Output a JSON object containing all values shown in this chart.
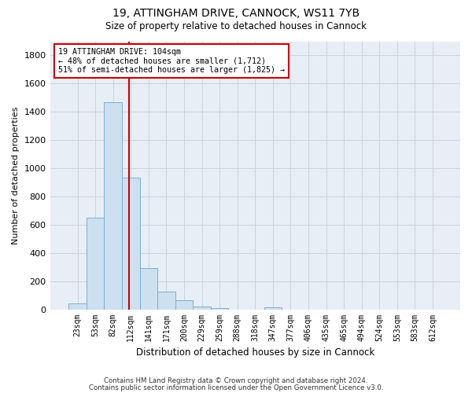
{
  "title1": "19, ATTINGHAM DRIVE, CANNOCK, WS11 7YB",
  "title2": "Size of property relative to detached houses in Cannock",
  "xlabel": "Distribution of detached houses by size in Cannock",
  "ylabel": "Number of detached properties",
  "bar_color": "#cce0f0",
  "bar_edge_color": "#7bafd4",
  "categories": [
    "23sqm",
    "53sqm",
    "82sqm",
    "112sqm",
    "141sqm",
    "171sqm",
    "200sqm",
    "229sqm",
    "259sqm",
    "288sqm",
    "318sqm",
    "347sqm",
    "377sqm",
    "406sqm",
    "435sqm",
    "465sqm",
    "494sqm",
    "524sqm",
    "553sqm",
    "583sqm",
    "612sqm"
  ],
  "values": [
    40,
    650,
    1470,
    935,
    290,
    125,
    62,
    22,
    8,
    0,
    0,
    14,
    0,
    0,
    0,
    0,
    0,
    0,
    0,
    0,
    0
  ],
  "ylim": [
    0,
    1900
  ],
  "yticks": [
    0,
    200,
    400,
    600,
    800,
    1000,
    1200,
    1400,
    1600,
    1800
  ],
  "vline_x": 2.88,
  "annotation_text": "19 ATTINGHAM DRIVE: 104sqm\n← 48% of detached houses are smaller (1,712)\n51% of semi-detached houses are larger (1,825) →",
  "annotation_box_color": "white",
  "annotation_box_edge_color": "#cc0000",
  "vline_color": "#cc0000",
  "figure_bg_color": "#ffffff",
  "plot_bg_color": "#e8eef5",
  "grid_color": "#c8d4df",
  "footer1": "Contains HM Land Registry data © Crown copyright and database right 2024.",
  "footer2": "Contains public sector information licensed under the Open Government Licence v3.0."
}
